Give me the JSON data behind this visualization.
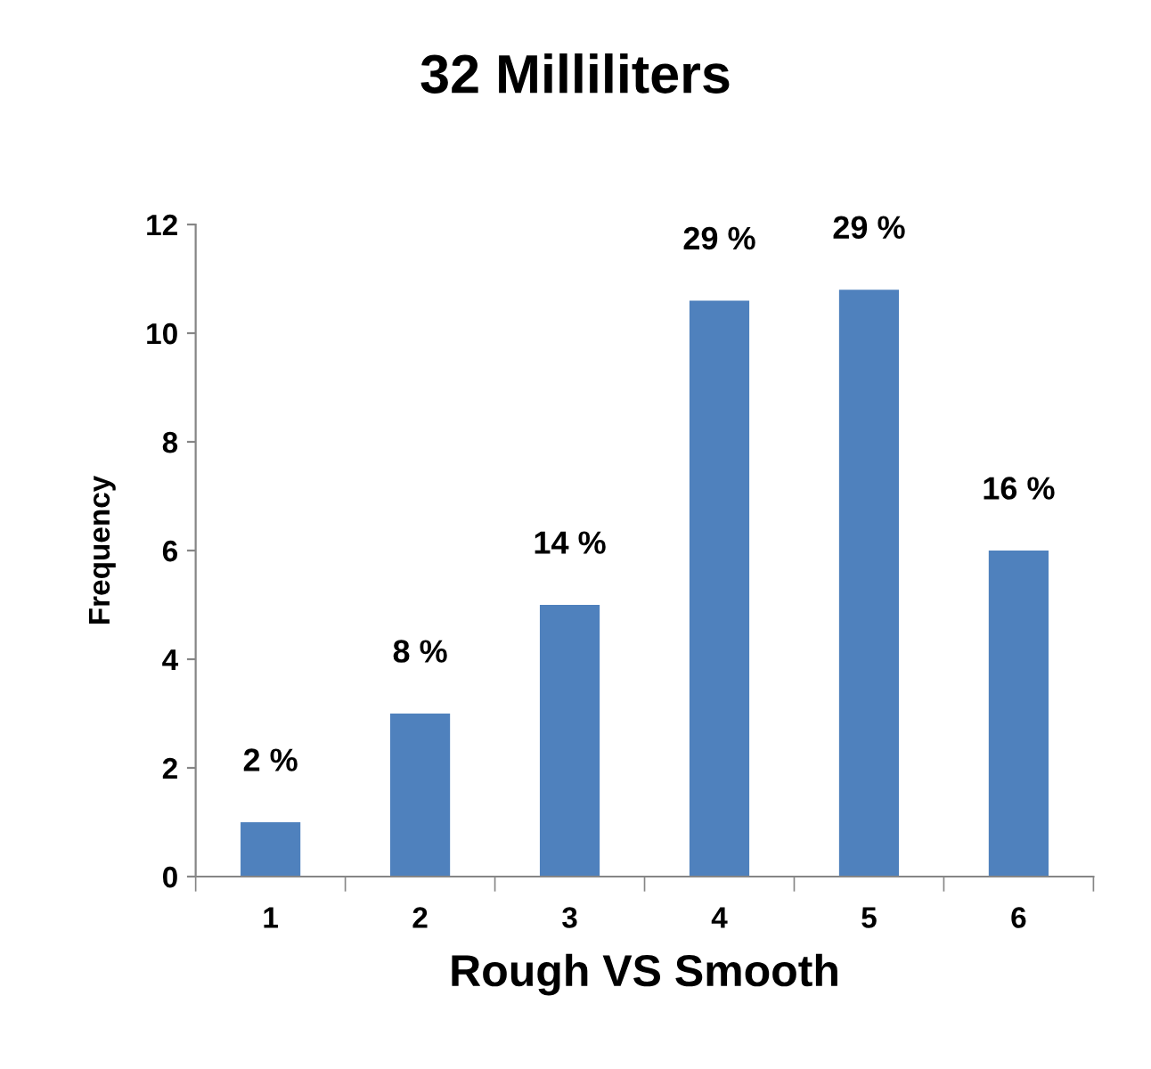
{
  "chart_data": {
    "type": "bar",
    "title": "32 Milliliters",
    "xlabel": "Rough VS Smooth",
    "ylabel": "Frequency",
    "categories": [
      "1",
      "2",
      "3",
      "4",
      "5",
      "6"
    ],
    "values": [
      1,
      3,
      5,
      10.6,
      10.8,
      6
    ],
    "annotations": [
      {
        "text": "2 %",
        "x": "1",
        "y": 1
      },
      {
        "text": "8 %",
        "x": "2",
        "y": 3
      },
      {
        "text": "14 %",
        "x": "3",
        "y": 5
      },
      {
        "text": "29 %",
        "x": "4",
        "y": 10.6
      },
      {
        "text": "29 %",
        "x": "5",
        "y": 10.8
      },
      {
        "text": "16 %",
        "x": "6",
        "y": 6
      }
    ],
    "color": "#4f81bd",
    "ylim": [
      0,
      12
    ],
    "yticks": [
      0,
      2,
      4,
      6,
      8,
      10,
      12
    ],
    "grid": false,
    "legend": false
  }
}
